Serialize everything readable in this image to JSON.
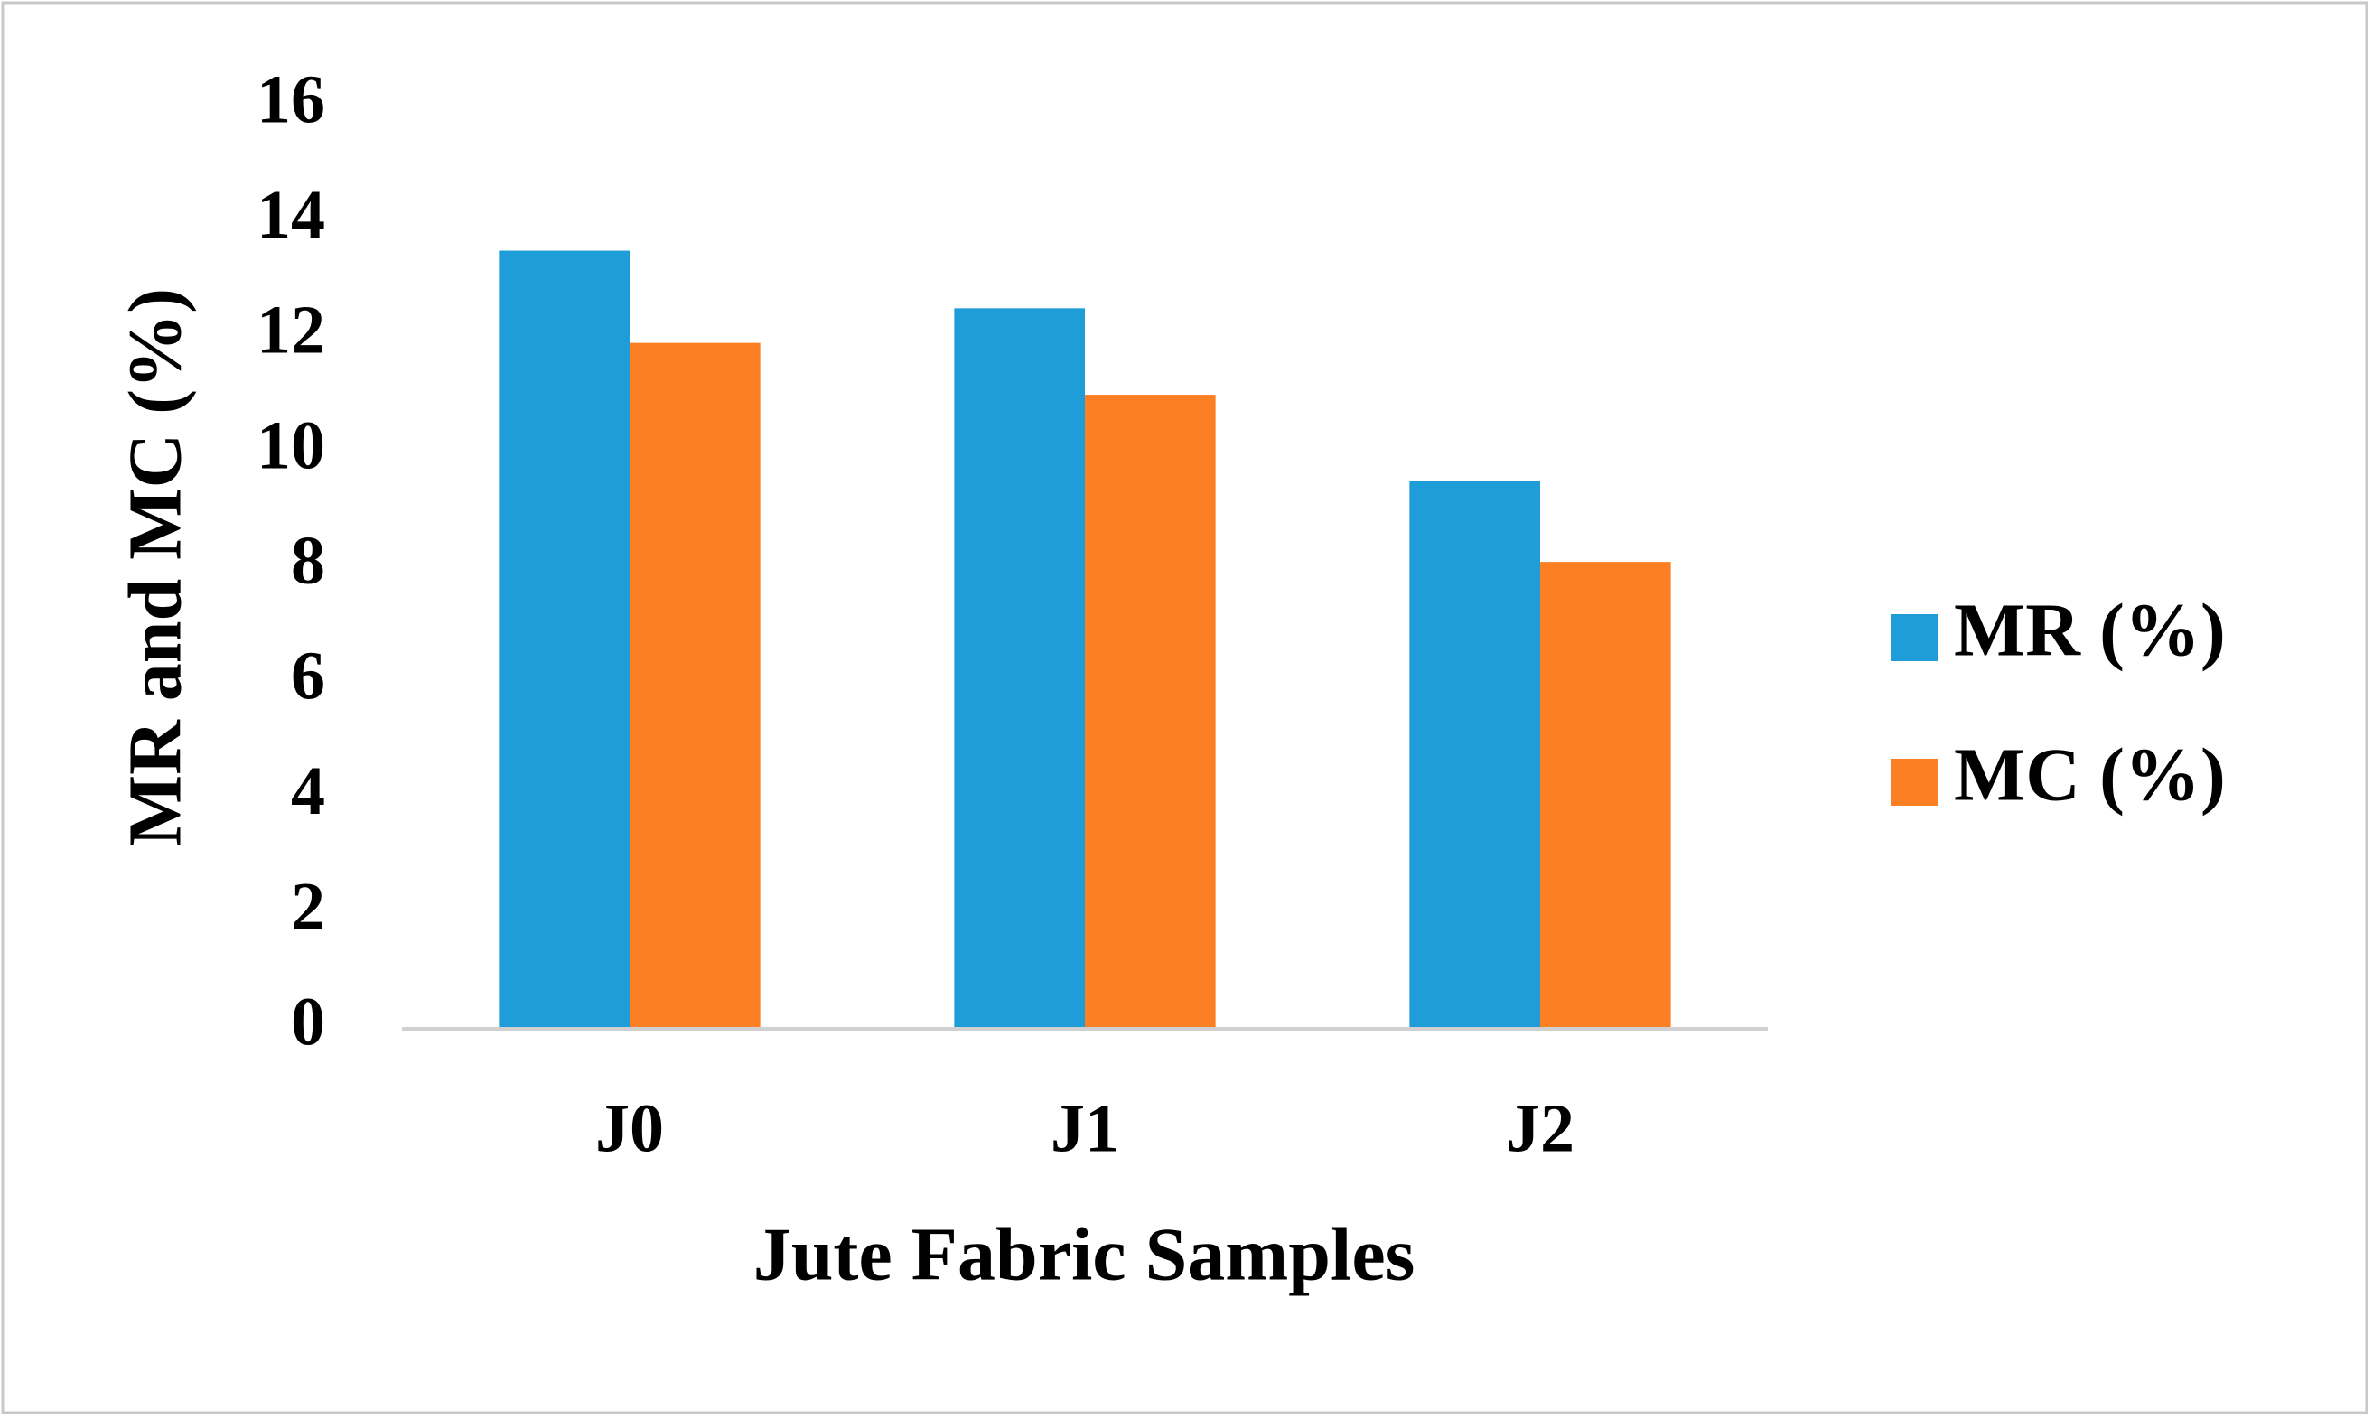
{
  "chart_data": {
    "type": "bar",
    "xlabel": "Jute Fabric Samples",
    "ylabel": "MR and MC (%)",
    "categories": [
      "J0",
      "J1",
      "J2"
    ],
    "series": [
      {
        "name": "MR (%)",
        "color": "#1f9dd9",
        "values": [
          13.5,
          12.5,
          9.5
        ]
      },
      {
        "name": "MC (%)",
        "color": "#fd7f23",
        "values": [
          11.9,
          11.0,
          8.1
        ]
      }
    ],
    "ylim": [
      0,
      16
    ],
    "yticks": [
      0,
      2,
      4,
      6,
      8,
      10,
      12,
      14,
      16
    ],
    "grid": false,
    "legend": "right"
  }
}
